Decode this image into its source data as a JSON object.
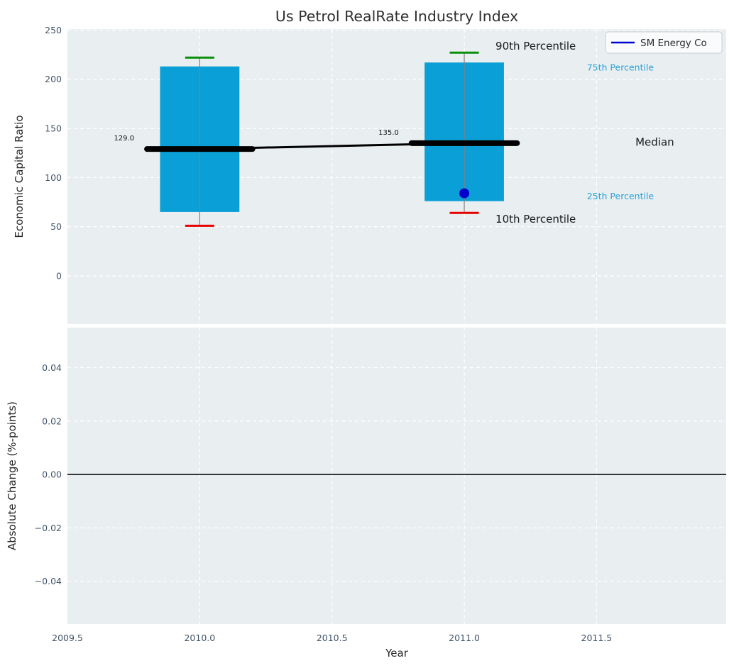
{
  "title": "Us Petrol RealRate Industry Index",
  "legend": {
    "label": "SM Energy Co"
  },
  "colors": {
    "figure_bg": "#ffffff",
    "plot_bg": "#e9eef0",
    "grid": "#ffffff",
    "box_fill": "#0a9fd6",
    "whisker": "#808080",
    "cap_90th": "#0a8f0a",
    "cap_10th": "#e60000",
    "median_line": "#000000",
    "company_dot": "#0000cd",
    "legend_line": "#0000cd",
    "zero_line": "#000000",
    "tick_label": "#44546a",
    "cyan_annotation": "#2aa2d8",
    "black_annotation": "#1a1a1a"
  },
  "chart_data": [
    {
      "type": "box",
      "title": "Us Petrol RealRate Industry Index",
      "xlabel": "",
      "ylabel": "Economic Capital Ratio",
      "xlim": [
        2009.5,
        2011.99
      ],
      "ylim": [
        -49,
        251
      ],
      "xticks": [
        2009.5,
        2010.0,
        2010.5,
        2011.0,
        2011.5
      ],
      "xticklabels": [
        "2009.5",
        "2010.0",
        "2010.5",
        "2011.0",
        "2011.5"
      ],
      "yticks": [
        0,
        50,
        100,
        150,
        200,
        250
      ],
      "yticklabels": [
        "0",
        "50",
        "100",
        "150",
        "200",
        "250"
      ],
      "grid": true,
      "legend": {
        "label": "SM Energy Co",
        "position": "upper right"
      },
      "boxes": [
        {
          "x": 2010.0,
          "p10": 51,
          "p25": 65,
          "median": 129.0,
          "p75": 213,
          "p90": 222,
          "median_label": "129.0"
        },
        {
          "x": 2011.0,
          "p10": 64,
          "p25": 76,
          "median": 135.0,
          "p75": 217,
          "p90": 227,
          "median_label": "135.0"
        }
      ],
      "median_series": {
        "x": [
          2010.0,
          2011.0
        ],
        "y": [
          129.0,
          135.0
        ]
      },
      "company_series": {
        "name": "SM Energy Co",
        "points": [
          {
            "x": 2011.0,
            "y": 84
          }
        ]
      },
      "annotations": [
        {
          "text": "90th Percentile",
          "x": 2011.27,
          "y": 234,
          "color": "#1a1a1a",
          "size": 15
        },
        {
          "text": "75th Percentile",
          "x": 2011.59,
          "y": 212,
          "color": "#2aa2d8",
          "size": 12.5
        },
        {
          "text": "Median",
          "x": 2011.72,
          "y": 136,
          "color": "#1a1a1a",
          "size": 15
        },
        {
          "text": "25th Percentile",
          "x": 2011.59,
          "y": 81,
          "color": "#2aa2d8",
          "size": 12.5
        },
        {
          "text": "10th Percentile",
          "x": 2011.27,
          "y": 58,
          "color": "#1a1a1a",
          "size": 15
        }
      ],
      "box_width_years": 0.3,
      "median_bar_width_years": 0.42,
      "cap_width_years": 0.055
    },
    {
      "type": "line",
      "xlabel": "Year",
      "ylabel": "Absolute Change (%-points)",
      "xlim": [
        2009.5,
        2011.99
      ],
      "ylim": [
        -0.056,
        0.055
      ],
      "xticks": [
        2009.5,
        2010.0,
        2010.5,
        2011.0,
        2011.5
      ],
      "xticklabels": [
        "2009.5",
        "2010.0",
        "2010.5",
        "2011.0",
        "2011.5"
      ],
      "yticks": [
        -0.04,
        -0.02,
        0.0,
        0.02,
        0.04
      ],
      "yticklabels": [
        "−0.04",
        "−0.02",
        "0.00",
        "0.02",
        "0.04"
      ],
      "grid": true,
      "zero_line": 0.0,
      "series": []
    }
  ]
}
